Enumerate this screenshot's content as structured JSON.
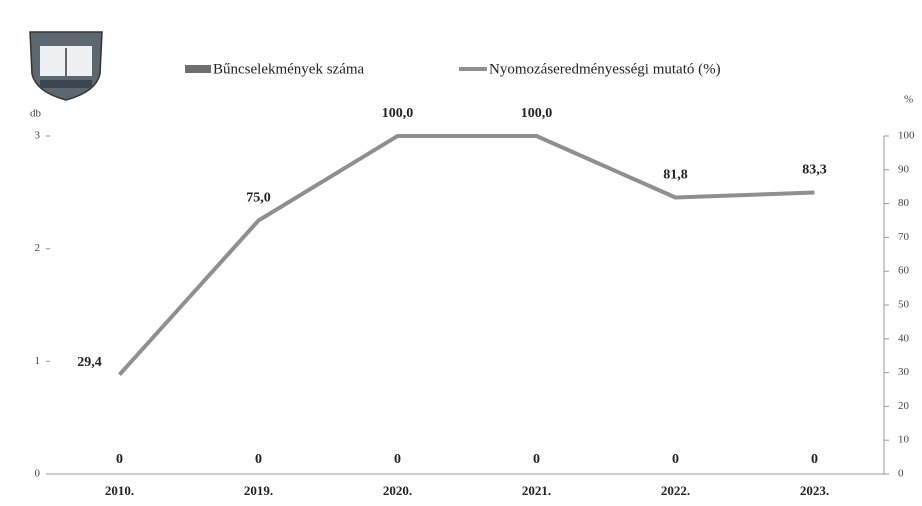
{
  "chart_data": {
    "type": "bar-line",
    "categories": [
      "2010.",
      "2019.",
      "2020.",
      "2021.",
      "2022.",
      "2023."
    ],
    "y_label": "db",
    "y2_label": "%",
    "ylim": [
      0,
      3
    ],
    "yticks": [
      0,
      1,
      2,
      3
    ],
    "y2lim": [
      0,
      100
    ],
    "y2ticks": [
      0,
      10,
      20,
      30,
      40,
      50,
      60,
      70,
      80,
      90,
      100
    ],
    "series": [
      {
        "name": "Bűncselekmények száma",
        "type": "bar",
        "color": "#6e6e6e",
        "values": [
          0,
          0,
          0,
          0,
          0,
          0
        ]
      },
      {
        "name": "Nyomozáseredményességi mutató (%)",
        "type": "line",
        "axis": "y2",
        "color": "#8f8f8f",
        "values": [
          29.4,
          75.0,
          100.0,
          100.0,
          81.8,
          83.3
        ],
        "value_labels": [
          "29,4",
          "75,0",
          "100,0",
          "100,0",
          "81,8",
          "83,3"
        ]
      }
    ]
  }
}
